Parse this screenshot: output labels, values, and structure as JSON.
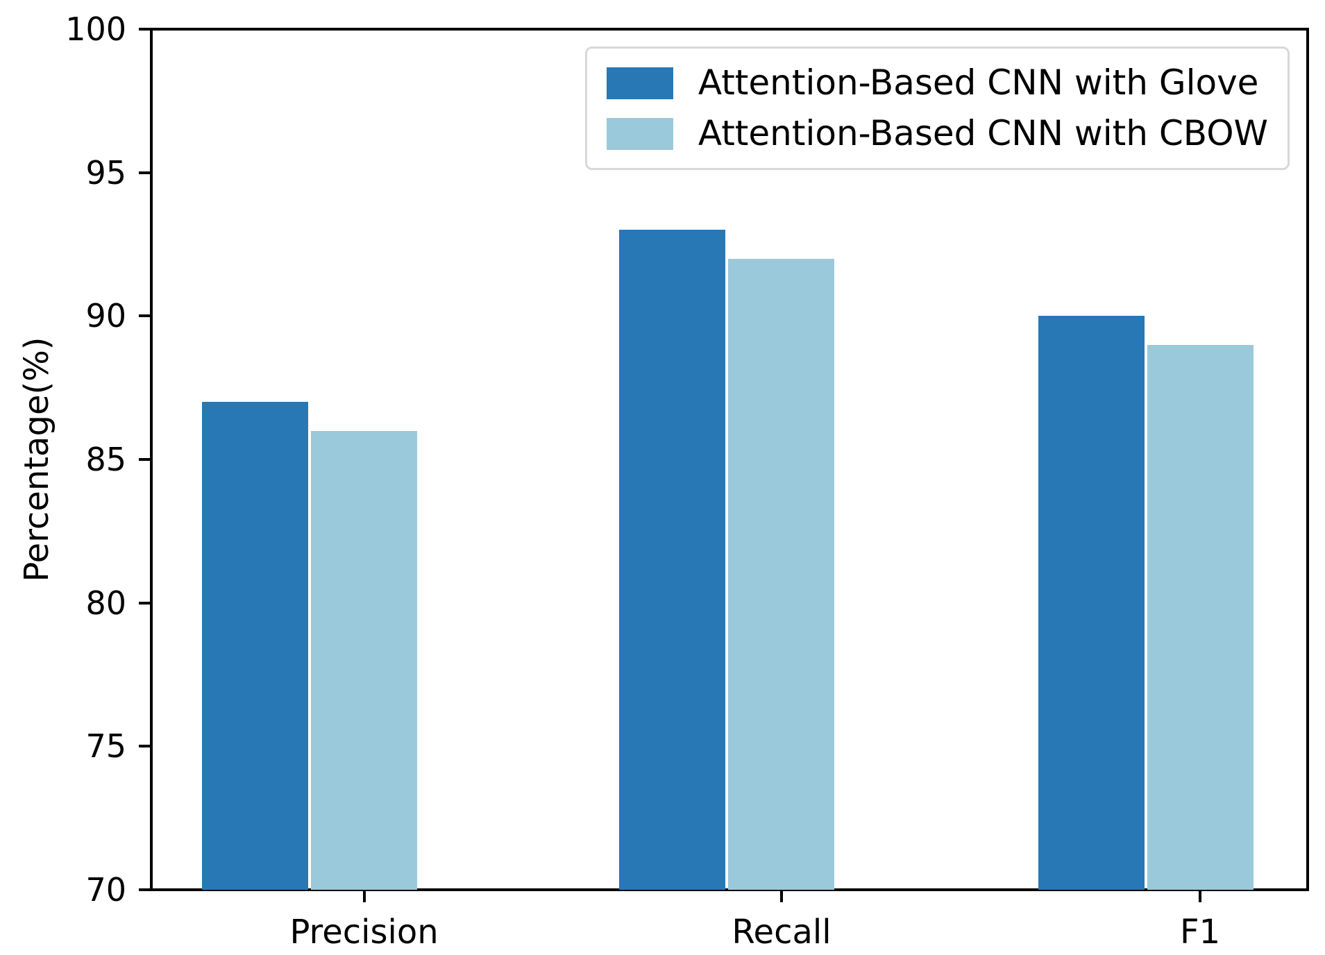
{
  "chart_data": {
    "type": "bar",
    "title": "",
    "categories": [
      "Precision",
      "Recall",
      "F1"
    ],
    "series": [
      {
        "name": "Attention-Based CNN with Glove",
        "short": "glove",
        "color": "#2878b5",
        "values": [
          87,
          93,
          90
        ]
      },
      {
        "name": "Attention-Based CNN with CBOW",
        "short": "cbow",
        "color": "#9ac9db",
        "values": [
          86,
          92,
          89
        ]
      }
    ],
    "xlabel": "",
    "ylabel": "Percentage(%)",
    "ylim": [
      70,
      100
    ],
    "yticks": [
      70,
      75,
      80,
      85,
      90,
      95,
      100
    ],
    "grid": false,
    "legend_position": "upper right",
    "axis_color": "#000000",
    "background_color": "#ffffff"
  }
}
